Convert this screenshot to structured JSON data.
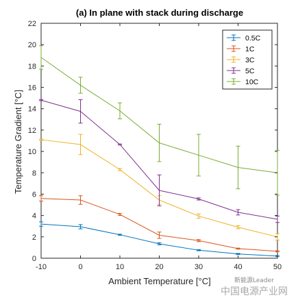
{
  "chart_data": {
    "type": "line",
    "title": "(a) In plane with stack during discharge",
    "xlabel": "Ambient Temperature [°C]",
    "ylabel": "Temperature Gradient [°C]",
    "xlim": [
      -10,
      50
    ],
    "ylim": [
      0,
      22
    ],
    "xticks": [
      -10,
      0,
      10,
      20,
      30,
      40,
      50
    ],
    "yticks": [
      0,
      2,
      4,
      6,
      8,
      10,
      12,
      14,
      16,
      18,
      20,
      22
    ],
    "grid": false,
    "legend_position": "top-right",
    "x": [
      -10,
      0,
      10,
      20,
      30,
      40,
      50
    ],
    "series": [
      {
        "name": "0.5C",
        "color": "#0072BD",
        "values": [
          3.2,
          2.95,
          2.2,
          1.35,
          0.75,
          0.4,
          0.2
        ],
        "errors": [
          0.2,
          0.2,
          0.05,
          0.1,
          0.05,
          0.05,
          0.05
        ]
      },
      {
        "name": "1C",
        "color": "#D95319",
        "values": [
          5.6,
          5.45,
          4.1,
          2.15,
          1.65,
          0.9,
          0.65
        ],
        "errors": [
          0.25,
          0.4,
          0.1,
          0.3,
          0.1,
          0.05,
          0.05
        ]
      },
      {
        "name": "3C",
        "color": "#EDB120",
        "values": [
          11.1,
          10.65,
          8.3,
          5.45,
          3.95,
          2.9,
          2.0
        ],
        "errors": [
          0.05,
          0.95,
          0.1,
          0.4,
          0.2,
          0.15,
          0.3
        ]
      },
      {
        "name": "5C",
        "color": "#7E2F8E",
        "values": [
          14.8,
          13.75,
          10.65,
          6.35,
          5.55,
          4.3,
          3.65
        ],
        "errors": [
          0.05,
          1.1,
          0.05,
          1.45,
          0.1,
          0.25,
          0.3
        ]
      },
      {
        "name": "10C",
        "color": "#77AC30",
        "values": [
          18.8,
          16.2,
          13.8,
          10.8,
          9.65,
          8.5,
          8.0
        ],
        "errors": [
          1.1,
          0.75,
          0.75,
          1.75,
          1.95,
          2.0,
          2.1
        ]
      }
    ]
  },
  "watermark": {
    "small": "新能源Leader",
    "large": "中国电源产业网"
  }
}
